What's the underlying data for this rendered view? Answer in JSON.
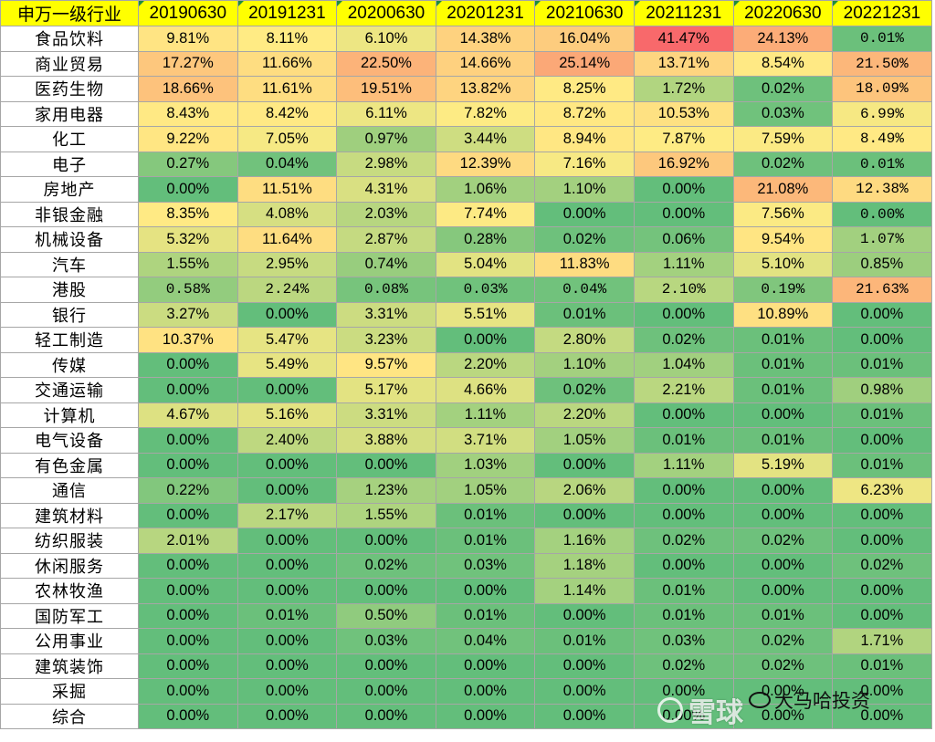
{
  "table": {
    "header": [
      "申万一级行业",
      "20190630",
      "20191231",
      "20200630",
      "20201231",
      "20210630",
      "20211231",
      "20220630",
      "20221231"
    ],
    "rows": [
      {
        "industry": "食品饮料",
        "values": [
          "9.81%",
          "8.11%",
          "6.10%",
          "14.38%",
          "16.04%",
          "41.47%",
          "24.13%",
          "0.01%"
        ]
      },
      {
        "industry": "商业贸易",
        "values": [
          "17.27%",
          "11.66%",
          "22.50%",
          "14.66%",
          "25.14%",
          "13.71%",
          "8.54%",
          "21.50%"
        ]
      },
      {
        "industry": "医药生物",
        "values": [
          "18.66%",
          "11.61%",
          "19.51%",
          "13.82%",
          "8.25%",
          "1.72%",
          "0.02%",
          "18.09%"
        ]
      },
      {
        "industry": "家用电器",
        "values": [
          "8.43%",
          "8.42%",
          "6.11%",
          "7.82%",
          "8.72%",
          "10.53%",
          "0.03%",
          "6.99%"
        ]
      },
      {
        "industry": "化工",
        "values": [
          "9.22%",
          "7.05%",
          "0.97%",
          "3.44%",
          "8.94%",
          "7.87%",
          "7.59%",
          "8.49%"
        ]
      },
      {
        "industry": "电子",
        "values": [
          "0.27%",
          "0.04%",
          "2.98%",
          "12.39%",
          "7.16%",
          "16.92%",
          "0.02%",
          "0.01%"
        ]
      },
      {
        "industry": "房地产",
        "values": [
          "0.00%",
          "11.51%",
          "4.31%",
          "1.06%",
          "1.10%",
          "0.00%",
          "21.08%",
          "12.38%"
        ]
      },
      {
        "industry": "非银金融",
        "values": [
          "8.35%",
          "4.08%",
          "2.03%",
          "7.74%",
          "0.00%",
          "0.00%",
          "7.56%",
          "0.00%"
        ]
      },
      {
        "industry": "机械设备",
        "values": [
          "5.32%",
          "11.64%",
          "2.87%",
          "0.28%",
          "0.02%",
          "0.06%",
          "9.54%",
          "1.07%"
        ]
      },
      {
        "industry": "汽车",
        "values": [
          "1.55%",
          "2.95%",
          "0.74%",
          "5.04%",
          "11.83%",
          "1.11%",
          "5.10%",
          "0.85%"
        ]
      },
      {
        "industry": "港股",
        "values": [
          "0.58%",
          "2.24%",
          "0.08%",
          "0.03%",
          "0.04%",
          "2.10%",
          "0.19%",
          "21.63%"
        ]
      },
      {
        "industry": "银行",
        "values": [
          "3.27%",
          "0.00%",
          "3.31%",
          "5.51%",
          "0.01%",
          "0.00%",
          "10.89%",
          "0.00%"
        ]
      },
      {
        "industry": "轻工制造",
        "values": [
          "10.37%",
          "5.47%",
          "3.23%",
          "0.00%",
          "2.80%",
          "0.02%",
          "0.01%",
          "0.00%"
        ]
      },
      {
        "industry": "传媒",
        "values": [
          "0.00%",
          "5.49%",
          "9.57%",
          "2.20%",
          "1.10%",
          "1.04%",
          "0.01%",
          "0.01%"
        ]
      },
      {
        "industry": "交通运输",
        "values": [
          "0.00%",
          "0.00%",
          "5.17%",
          "4.66%",
          "0.02%",
          "2.21%",
          "0.01%",
          "0.98%"
        ]
      },
      {
        "industry": "计算机",
        "values": [
          "4.67%",
          "5.16%",
          "3.31%",
          "1.11%",
          "2.20%",
          "0.00%",
          "0.00%",
          "0.01%"
        ]
      },
      {
        "industry": "电气设备",
        "values": [
          "0.00%",
          "2.40%",
          "3.88%",
          "3.71%",
          "1.05%",
          "0.01%",
          "0.01%",
          "0.00%"
        ]
      },
      {
        "industry": "有色金属",
        "values": [
          "0.00%",
          "0.00%",
          "0.00%",
          "1.03%",
          "0.00%",
          "1.11%",
          "5.19%",
          "0.01%"
        ]
      },
      {
        "industry": "通信",
        "values": [
          "0.22%",
          "0.00%",
          "1.23%",
          "1.05%",
          "2.06%",
          "0.00%",
          "0.00%",
          "6.23%"
        ]
      },
      {
        "industry": "建筑材料",
        "values": [
          "0.00%",
          "2.17%",
          "1.55%",
          "0.01%",
          "0.00%",
          "0.00%",
          "0.00%",
          "0.00%"
        ]
      },
      {
        "industry": "纺织服装",
        "values": [
          "2.01%",
          "0.00%",
          "0.00%",
          "0.01%",
          "1.16%",
          "0.02%",
          "0.02%",
          "0.00%"
        ]
      },
      {
        "industry": "休闲服务",
        "values": [
          "0.00%",
          "0.00%",
          "0.02%",
          "0.03%",
          "1.18%",
          "0.00%",
          "0.00%",
          "0.02%"
        ]
      },
      {
        "industry": "农林牧渔",
        "values": [
          "0.00%",
          "0.00%",
          "0.00%",
          "0.00%",
          "1.14%",
          "0.01%",
          "0.00%",
          "0.00%"
        ]
      },
      {
        "industry": "国防军工",
        "values": [
          "0.00%",
          "0.01%",
          "0.50%",
          "0.01%",
          "0.00%",
          "0.01%",
          "0.01%",
          "0.00%"
        ]
      },
      {
        "industry": "公用事业",
        "values": [
          "0.00%",
          "0.00%",
          "0.03%",
          "0.04%",
          "0.01%",
          "0.03%",
          "0.02%",
          "1.71%"
        ]
      },
      {
        "industry": "建筑装饰",
        "values": [
          "0.00%",
          "0.00%",
          "0.00%",
          "0.00%",
          "0.00%",
          "0.02%",
          "0.02%",
          "0.01%"
        ]
      },
      {
        "industry": "采掘",
        "values": [
          "0.00%",
          "0.00%",
          "0.00%",
          "0.00%",
          "0.00%",
          "0.00%",
          "0.00%",
          "0.00%"
        ]
      },
      {
        "industry": "综合",
        "values": [
          "0.00%",
          "0.00%",
          "0.00%",
          "0.00%",
          "0.00%",
          "0.00%",
          "0.00%",
          "0.00%"
        ]
      }
    ],
    "colors": {
      "header_bg": "#ffff00",
      "scale_low": "#63be7b",
      "scale_mid": "#ffeb84",
      "scale_high": "#f8696b"
    }
  },
  "watermark": {
    "main": "雪球",
    "sub": "大马哈投资"
  }
}
